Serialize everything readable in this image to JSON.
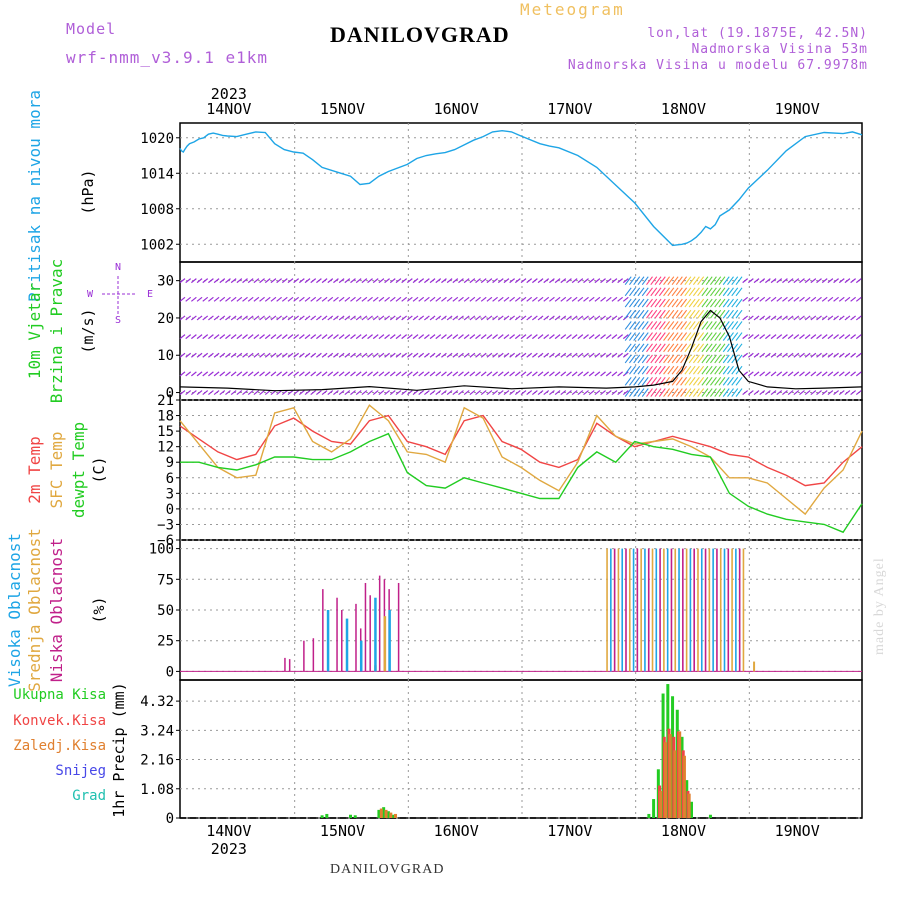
{
  "header": {
    "model_label": "Model",
    "model_name": "wrf-nmm_v3.9.1 e1km",
    "title": "DANILOVGRAD",
    "meteogram": "Meteogram",
    "lonlat": "lon,lat (19.1875E, 42.5N)",
    "altitude": "Nadmorska Visina 53m",
    "model_altitude": "Nadmorska Visina u modelu 67.9978m"
  },
  "footer": {
    "station": "DANILOVGRAD",
    "credit": "made by Angel"
  },
  "colors": {
    "pressure": "#1ea5e6",
    "wind_label": "#22cc22",
    "wind_barbs": "#9a2fd6",
    "temp2m": "#f04545",
    "sfc": "#e0a840",
    "dewpt": "#22cc22",
    "high": "#1ea5e6",
    "mid": "#e0a840",
    "low": "#c0208a",
    "total_precip": "#22cc22",
    "conv_precip": "#f04545",
    "strat_precip": "#e08030",
    "snow": "#4848e8",
    "hail": "#20c0b0"
  },
  "time_axis": {
    "labels": [
      "14NOV",
      "15NOV",
      "16NOV",
      "17NOV",
      "18NOV",
      "19NOV"
    ],
    "year": "2023",
    "start": "2023-11-13T12:00",
    "end": "2023-11-19T12:00"
  },
  "chart_data": [
    {
      "type": "line",
      "panel": "pressure",
      "ylabel": "Pritisak na nivou mora",
      "unit": "(hPa)",
      "yticks": [
        1002,
        1008,
        1014,
        1020
      ],
      "ylim": [
        999,
        1022.5
      ],
      "series": [
        {
          "name": "Pritisak na nivou mora",
          "x": [
            0,
            0.3,
            0.7,
            1,
            1.5,
            2,
            3,
            4,
            5,
            6,
            7,
            8,
            9,
            10,
            12,
            14,
            16,
            18,
            20,
            22,
            24,
            26,
            28,
            30,
            34,
            36,
            38,
            40,
            42,
            44,
            48,
            50,
            52,
            54,
            56,
            58,
            60,
            62,
            64,
            66,
            68,
            70,
            72,
            76,
            78,
            80,
            84,
            88,
            92,
            96,
            100,
            104,
            106,
            107,
            108,
            109,
            110,
            111,
            112,
            113,
            114,
            116,
            118,
            120,
            124,
            128,
            132,
            136,
            140,
            142,
            144
          ],
          "values": [
            1018.2,
            1017.8,
            1017.6,
            1018.0,
            1018.6,
            1019.0,
            1019.3,
            1019.8,
            1020.0,
            1020.6,
            1020.8,
            1020.6,
            1020.4,
            1020.3,
            1020.2,
            1020.6,
            1021.0,
            1020.9,
            1019.0,
            1018.0,
            1017.6,
            1017.4,
            1016.3,
            1015.0,
            1014.0,
            1013.5,
            1012.1,
            1012.3,
            1013.5,
            1014.3,
            1015.5,
            1016.5,
            1017.0,
            1017.3,
            1017.5,
            1018.0,
            1018.8,
            1019.6,
            1020.2,
            1021.0,
            1021.2,
            1021.0,
            1020.3,
            1019.0,
            1018.6,
            1018.3,
            1017.0,
            1015.0,
            1012.0,
            1009.0,
            1005.0,
            1001.8,
            1002.0,
            1002.2,
            1002.6,
            1003.2,
            1004.0,
            1005.0,
            1004.6,
            1005.3,
            1006.8,
            1007.8,
            1009.5,
            1011.5,
            1014.5,
            1017.8,
            1020.2,
            1020.9,
            1020.7,
            1021.0,
            1020.5
          ]
        }
      ]
    },
    {
      "type": "line",
      "panel": "wind",
      "ylabel": "10m Vjetar",
      "ylabel2": "Brzina i Pravac",
      "unit": "(m/s)",
      "yticks": [
        0,
        10,
        20,
        30
      ],
      "ylim": [
        -2,
        35
      ],
      "legend": {
        "n": "N",
        "w": "W",
        "e": "E",
        "s": "S"
      },
      "series": [
        {
          "name": "Brzina",
          "x": [
            0,
            10,
            20,
            30,
            40,
            50,
            60,
            70,
            80,
            90,
            96,
            100,
            104,
            106,
            108,
            110,
            112,
            114,
            116,
            118,
            120,
            124,
            130,
            136,
            144
          ],
          "values": [
            1.5,
            1.2,
            0.5,
            0.8,
            1.6,
            0.6,
            1.8,
            1.0,
            1.5,
            1.2,
            1.5,
            2.0,
            3.0,
            6.0,
            12.0,
            19.0,
            22.0,
            20.0,
            15.0,
            6.0,
            3.0,
            1.5,
            1.0,
            1.2,
            1.5
          ]
        }
      ]
    },
    {
      "type": "line",
      "panel": "temperature",
      "ylabels": [
        "2m Temp",
        "SFC Temp",
        "dewpt Temp"
      ],
      "unit": "(C)",
      "yticks": [
        -6,
        -3,
        0,
        3,
        6,
        9,
        12,
        15,
        18,
        21
      ],
      "ylim": [
        -6,
        21
      ],
      "x": [
        0,
        4,
        8,
        12,
        16,
        20,
        24,
        28,
        32,
        36,
        40,
        44,
        48,
        52,
        56,
        60,
        64,
        68,
        72,
        76,
        80,
        84,
        88,
        92,
        96,
        100,
        104,
        108,
        112,
        116,
        120,
        124,
        128,
        132,
        136,
        140,
        144
      ],
      "series": [
        {
          "name": "2m Temp",
          "values": [
            16,
            13.5,
            11,
            9.5,
            10.5,
            16,
            17.5,
            15,
            13,
            12.5,
            17,
            18,
            13,
            12,
            10.5,
            17,
            18,
            13,
            11.5,
            9,
            8,
            9.5,
            16.5,
            14,
            12,
            13,
            14,
            13,
            12,
            10.5,
            10,
            8,
            6.5,
            4.5,
            5,
            9,
            12
          ]
        },
        {
          "name": "SFC Temp",
          "values": [
            17,
            12.5,
            8,
            6,
            6.5,
            18.5,
            19.5,
            13,
            11,
            13.5,
            20,
            17,
            11,
            10.5,
            9,
            19.5,
            17.5,
            10,
            8,
            5.5,
            3.5,
            9,
            18,
            14,
            12.5,
            13,
            13.5,
            12,
            10,
            6,
            6,
            5,
            2,
            -1,
            4,
            7.5,
            15
          ]
        },
        {
          "name": "dewpt Temp",
          "values": [
            9,
            9,
            8,
            7.5,
            8.5,
            10,
            10,
            9.5,
            9.5,
            11,
            13,
            14.5,
            7,
            4.5,
            4,
            6,
            5,
            4,
            3,
            2,
            2,
            8,
            11,
            9,
            13,
            12,
            11.5,
            10.5,
            10,
            3,
            0.5,
            -1,
            -2,
            -2.5,
            -3,
            -4.5,
            1
          ]
        }
      ]
    },
    {
      "type": "bar",
      "panel": "clouds",
      "ylabels": [
        "Visoka Oblacnost",
        "Srednja Oblacnost",
        "Niska Oblacnost"
      ],
      "unit": "(%)",
      "yticks": [
        0,
        25,
        50,
        75,
        100
      ],
      "ylim": [
        -7,
        107
      ],
      "series": [
        {
          "name": "Niska Oblacnost",
          "x": [
            22,
            23,
            26,
            28,
            30,
            33,
            34,
            37,
            38,
            39,
            40,
            42,
            43,
            44,
            46
          ],
          "values": [
            11,
            10,
            25,
            27,
            67,
            60,
            50,
            55,
            35,
            72,
            62,
            78,
            75,
            67,
            72
          ]
        },
        {
          "name": "Srednja Oblacnost",
          "x": [
            41,
            43
          ],
          "values": [
            5,
            45
          ]
        },
        {
          "name": "Visoka Oblacnost",
          "x": [
            31,
            35,
            38,
            41,
            44
          ],
          "values": [
            50,
            43,
            25,
            60,
            50
          ]
        }
      ],
      "full_cover_span": [
        90,
        119.5
      ],
      "tail": {
        "x": 121,
        "value": 8
      }
    },
    {
      "type": "bar",
      "panel": "precip",
      "ylabels": [
        "Ukupna Kisa",
        "Konvek.Kisa",
        "Zaledj.Kisa",
        "Snijeg",
        "Grad"
      ],
      "unit": "1hr Precip (mm)",
      "yticks": [
        0,
        1.08,
        2.16,
        3.24,
        4.32
      ],
      "ylim": [
        0,
        5.1
      ],
      "x": [
        30,
        31,
        36,
        37,
        42,
        43,
        44,
        45,
        99,
        100,
        101,
        102,
        103,
        104,
        105,
        106,
        107,
        108,
        112
      ],
      "series": [
        {
          "name": "Ukupna Kisa",
          "values": [
            0.1,
            0.15,
            0.12,
            0.1,
            0.3,
            0.4,
            0.25,
            0.12,
            0.15,
            0.7,
            1.8,
            4.6,
            4.95,
            4.5,
            4.0,
            3.0,
            1.4,
            0.6,
            0.12
          ]
        },
        {
          "name": "Konvek.Kisa",
          "values": [
            0,
            0,
            0,
            0,
            0,
            0,
            0,
            0,
            0,
            0,
            1.2,
            3.0,
            3.3,
            3.0,
            3.2,
            2.5,
            1.0,
            0,
            0
          ]
        },
        {
          "name": "Zaledj.Kisa",
          "values": [
            0,
            0,
            0,
            0,
            0.35,
            0.3,
            0.2,
            0.15,
            0,
            0,
            1.0,
            2.8,
            3.1,
            2.5,
            3.2,
            2.3,
            0.9,
            0,
            0
          ]
        }
      ]
    }
  ]
}
